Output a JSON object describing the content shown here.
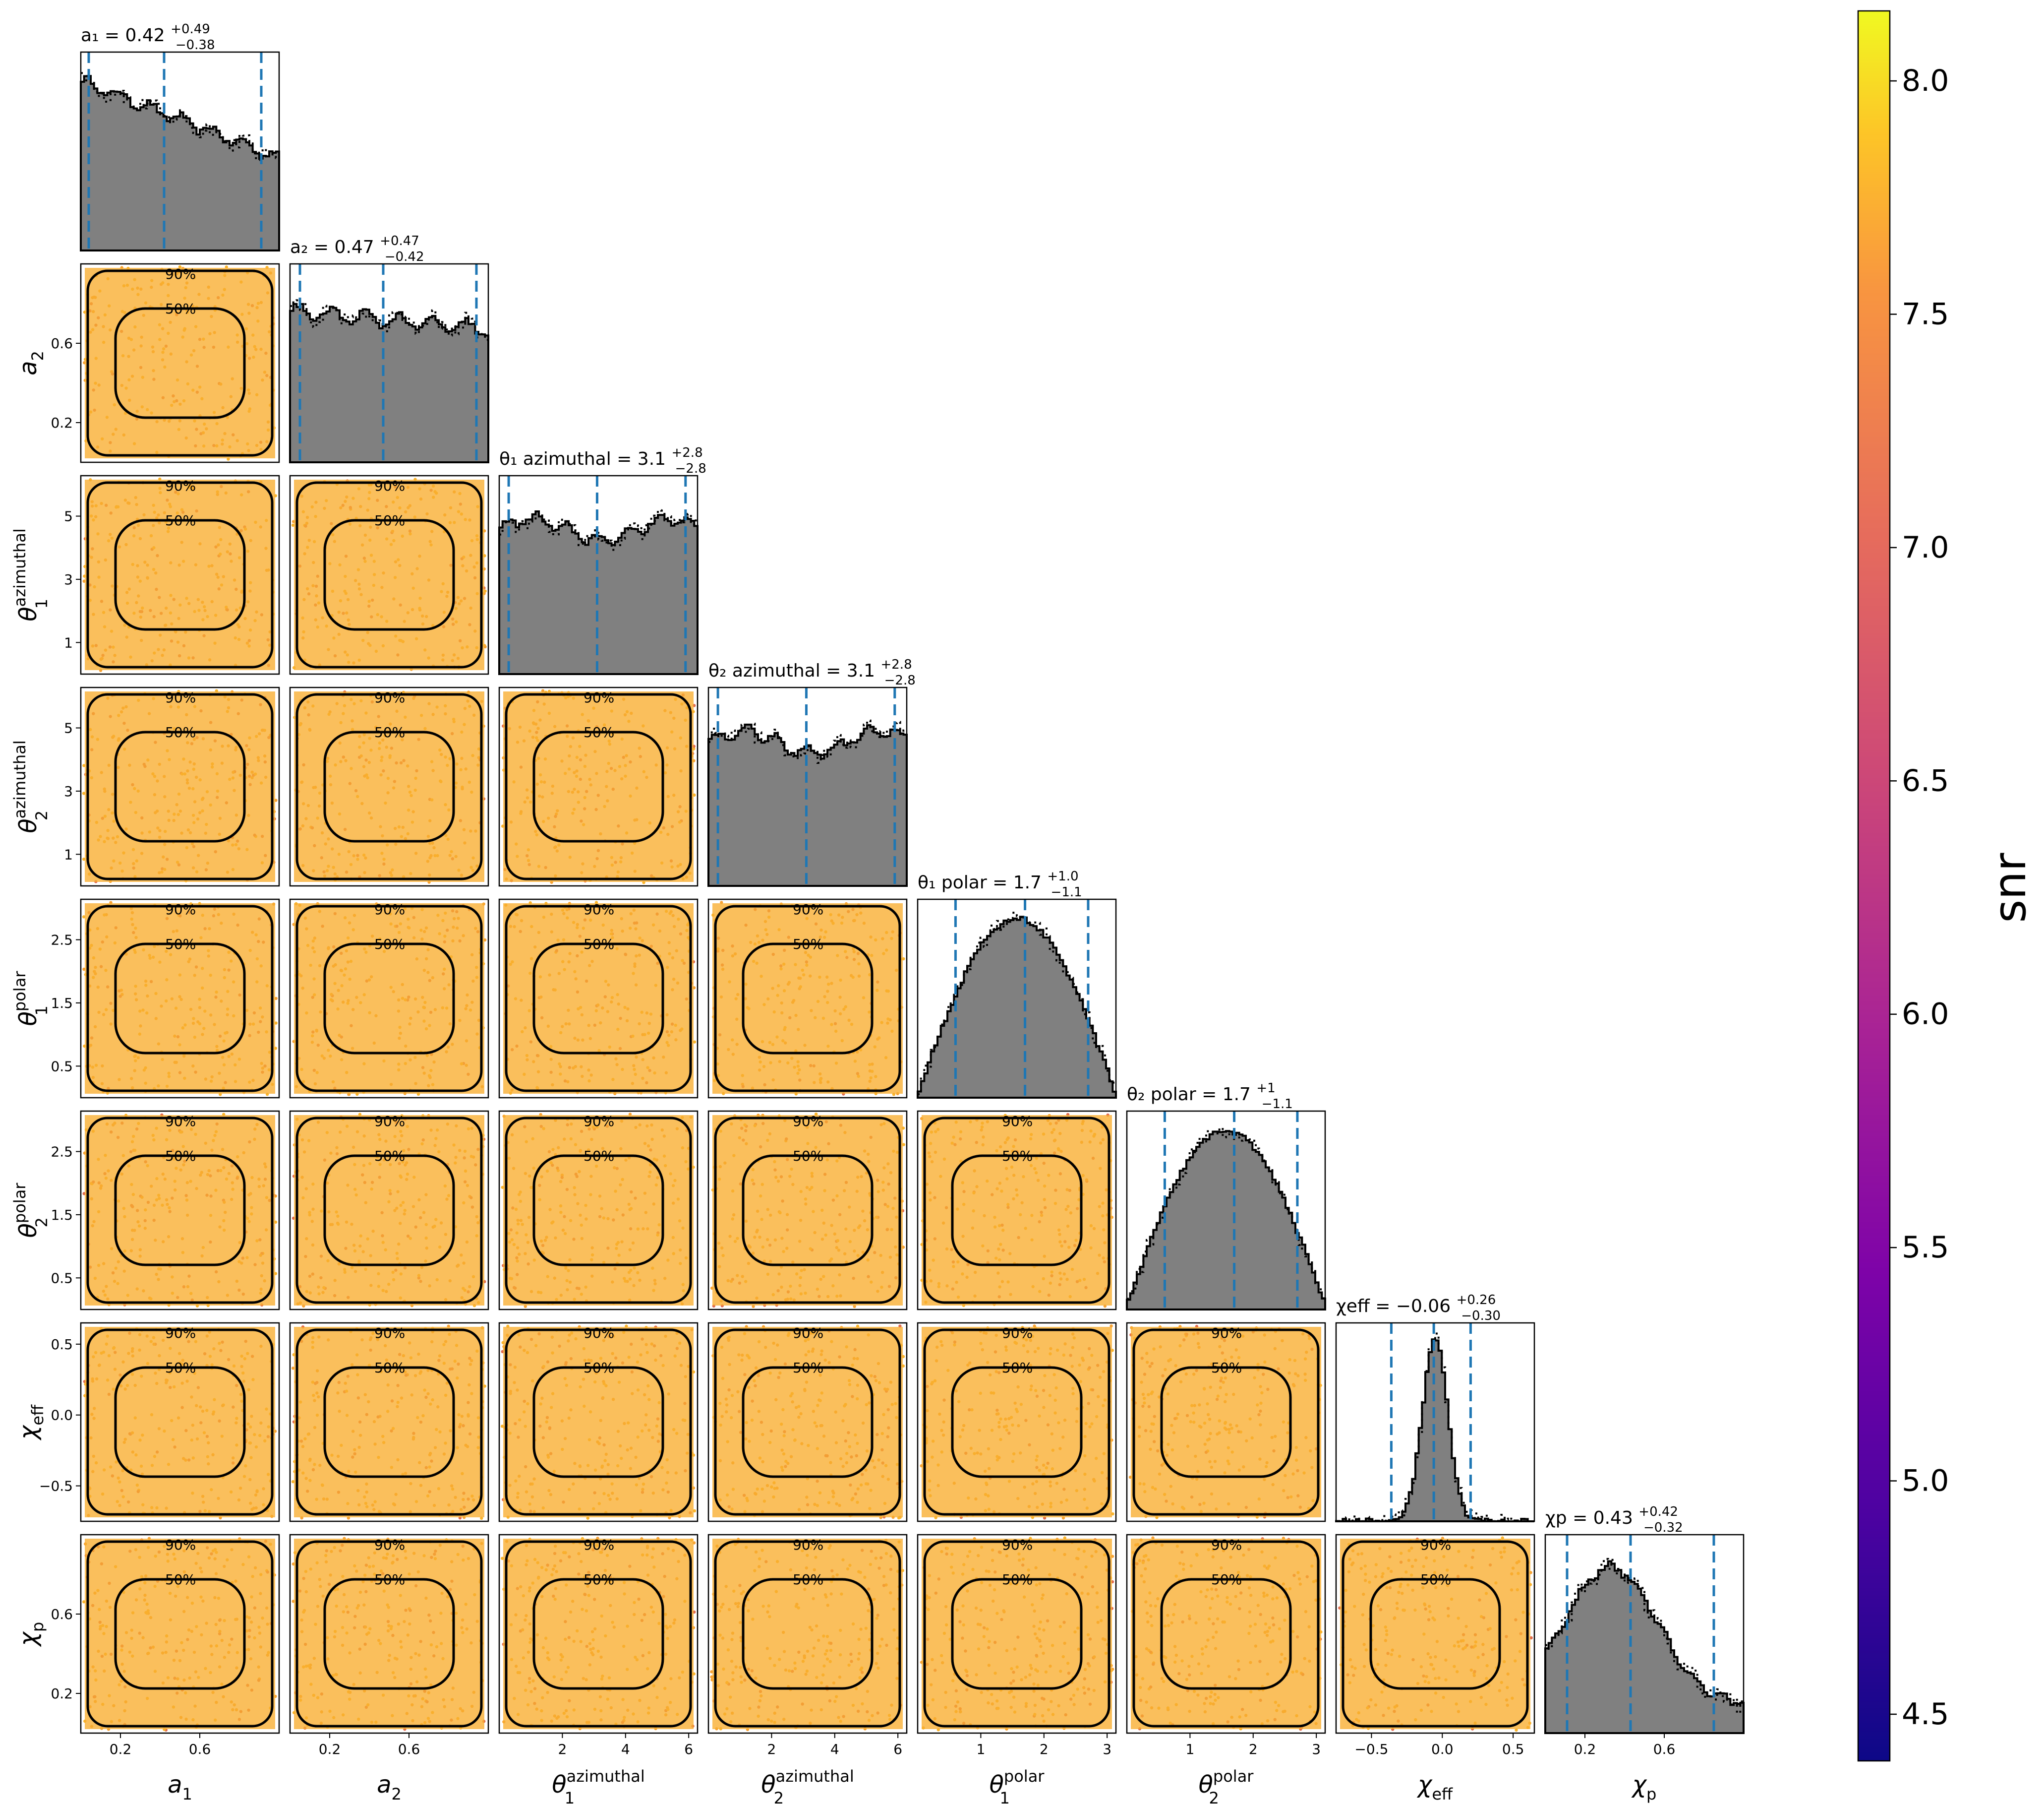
{
  "figure": {
    "type": "corner-plot",
    "colorbar": {
      "label": "snr",
      "range": [
        4.4,
        8.15
      ],
      "ticks": [
        "4.5",
        "5.0",
        "5.5",
        "6.0",
        "6.5",
        "7.0",
        "7.5",
        "8.0"
      ],
      "tick_values": [
        4.5,
        5.0,
        5.5,
        6.0,
        6.5,
        7.0,
        7.5,
        8.0
      ],
      "colormap": "plasma"
    },
    "contour_levels": [
      "50%",
      "90%"
    ],
    "colors": {
      "hist_fill": "#808080",
      "hist_line": "#000000",
      "quantile_line": "#1f77b4",
      "points_main": "#f9b42c",
      "points_dark": "#e06a50",
      "contour": "#000000"
    }
  },
  "chart_data": {
    "type": "corner",
    "parameters": [
      {
        "key": "a1",
        "axis_label": "a₁",
        "axis_sup": "",
        "axis_sub": "1",
        "axis_base": "a",
        "title": "a₁ = 0.42",
        "title_plus": "+0.49",
        "title_minus": "−0.38",
        "range": [
          0,
          1
        ],
        "ticks": [
          0.2,
          0.6
        ],
        "tick_labels": [
          "0.2",
          "0.6"
        ],
        "median": 0.42,
        "q_low": 0.04,
        "q_high": 0.91,
        "hist_shape": "decreasing"
      },
      {
        "key": "a2",
        "axis_label": "a₂",
        "axis_sup": "",
        "axis_sub": "2",
        "axis_base": "a",
        "title": "a₂ = 0.47",
        "title_plus": "+0.47",
        "title_minus": "−0.42",
        "range": [
          0,
          1
        ],
        "ticks": [
          0.2,
          0.6
        ],
        "tick_labels": [
          "0.2",
          "0.6"
        ],
        "median": 0.47,
        "q_low": 0.05,
        "q_high": 0.94,
        "hist_shape": "flat-decreasing"
      },
      {
        "key": "theta1_az",
        "axis_base": "θ",
        "axis_sub": "1",
        "axis_sup": "azimuthal",
        "title": "θ₁ azimuthal = 3.1",
        "title_plus": "+2.8",
        "title_minus": "−2.8",
        "range": [
          0,
          6.28
        ],
        "ticks": [
          2,
          4,
          6
        ],
        "tick_labels": [
          "2",
          "4",
          "6"
        ],
        "row_ticks": [
          1,
          3,
          5
        ],
        "row_tick_labels": [
          "1",
          "3",
          "5"
        ],
        "median": 3.1,
        "q_low": 0.3,
        "q_high": 5.9,
        "hist_shape": "flat"
      },
      {
        "key": "theta2_az",
        "axis_base": "θ",
        "axis_sub": "2",
        "axis_sup": "azimuthal",
        "title": "θ₂ azimuthal = 3.1",
        "title_plus": "+2.8",
        "title_minus": "−2.8",
        "range": [
          0,
          6.28
        ],
        "ticks": [
          2,
          4,
          6
        ],
        "tick_labels": [
          "2",
          "4",
          "6"
        ],
        "row_ticks": [
          1,
          3,
          5
        ],
        "row_tick_labels": [
          "1",
          "3",
          "5"
        ],
        "median": 3.1,
        "q_low": 0.3,
        "q_high": 5.9,
        "hist_shape": "flat"
      },
      {
        "key": "theta1_pol",
        "axis_base": "θ",
        "axis_sub": "1",
        "axis_sup": "polar",
        "title": "θ₁ polar = 1.7",
        "title_plus": "+1.0",
        "title_minus": "−1.1",
        "range": [
          0,
          3.14
        ],
        "ticks": [
          1,
          2,
          3
        ],
        "tick_labels": [
          "1",
          "2",
          "3"
        ],
        "row_ticks": [
          0.5,
          1.5,
          2.5
        ],
        "row_tick_labels": [
          "0.5",
          "1.5",
          "2.5"
        ],
        "median": 1.7,
        "q_low": 0.6,
        "q_high": 2.7,
        "hist_shape": "peaked"
      },
      {
        "key": "theta2_pol",
        "axis_base": "θ",
        "axis_sub": "2",
        "axis_sup": "polar",
        "title": "θ₂ polar = 1.7",
        "title_plus": "+1",
        "title_minus": "−1.1",
        "range": [
          0,
          3.14
        ],
        "ticks": [
          1,
          2,
          3
        ],
        "tick_labels": [
          "1",
          "2",
          "3"
        ],
        "row_ticks": [
          0.5,
          1.5,
          2.5
        ],
        "row_tick_labels": [
          "0.5",
          "1.5",
          "2.5"
        ],
        "median": 1.7,
        "q_low": 0.6,
        "q_high": 2.7,
        "hist_shape": "peaked"
      },
      {
        "key": "chi_eff",
        "axis_base": "χ",
        "axis_sub": "eff",
        "axis_sup": "",
        "title": "χeff = −0.06",
        "title_plus": "+0.26",
        "title_minus": "−0.30",
        "range": [
          -0.75,
          0.65
        ],
        "ticks": [
          -0.5,
          0.0,
          0.5
        ],
        "tick_labels": [
          "−0.5",
          "0.0",
          "0.5"
        ],
        "median": -0.06,
        "q_low": -0.36,
        "q_high": 0.2,
        "hist_shape": "narrow"
      },
      {
        "key": "chi_p",
        "axis_base": "χ",
        "axis_sub": "p",
        "axis_sup": "",
        "title": "χp = 0.43",
        "title_plus": "+0.42",
        "title_minus": "−0.32",
        "range": [
          0,
          1
        ],
        "ticks": [
          0.2,
          0.6
        ],
        "tick_labels": [
          "0.2",
          "0.6"
        ],
        "median": 0.43,
        "q_low": 0.11,
        "q_high": 0.85,
        "hist_shape": "broad-hump"
      }
    ]
  }
}
